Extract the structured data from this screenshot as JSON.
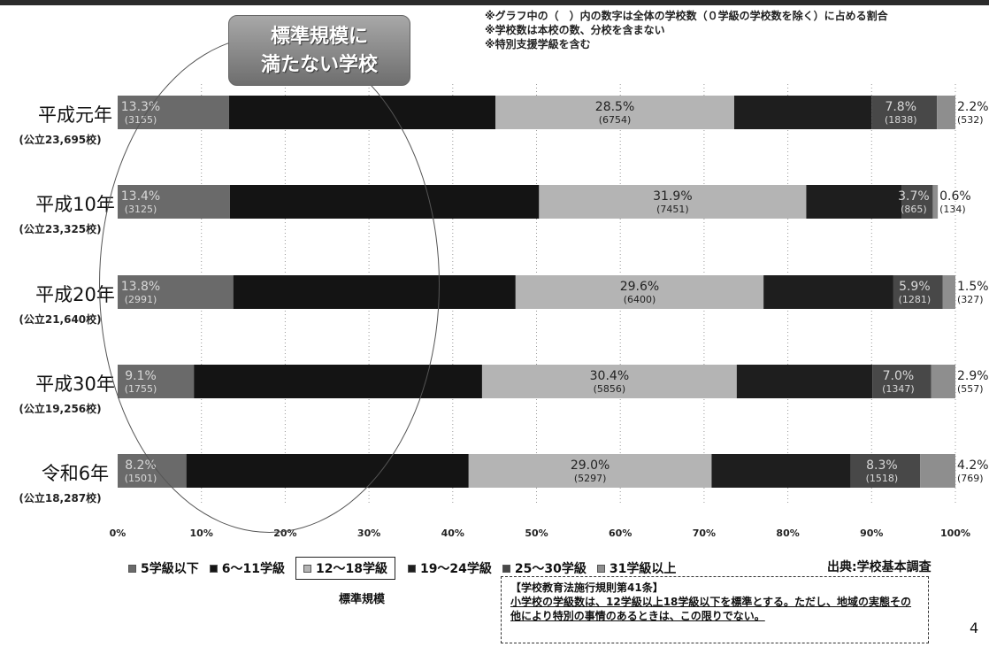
{
  "notes": [
    "※グラフ中の（　）内の数字は全体の学校数（０学級の学校数を除く）に占める割合",
    "※学校数は本校の数、分校を含まない",
    "※特別支援学級を含む"
  ],
  "callout": {
    "line1": "標準規模に",
    "line2": "満たない学校"
  },
  "legend": {
    "items": [
      "5学級以下",
      "6〜11学級",
      "12〜18学級",
      "19〜24学級",
      "25〜30学級",
      "31学級以上"
    ],
    "standard_label": "標準規模",
    "source": "出典:学校基本調査"
  },
  "law": {
    "title": "【学校教育法施行規則第41条】",
    "text": "小学校の学級数は、12学級以上18学級以下を標準とする。ただし、地域の実態その他により特別の事情のあるときは、この限りでない。"
  },
  "page_number": "4",
  "chart_data": {
    "type": "bar",
    "orientation": "horizontal-stacked-100",
    "categories": [
      {
        "label": "平成元年",
        "sub": "(公立23,695校)"
      },
      {
        "label": "平成10年",
        "sub": "(公立23,325校)"
      },
      {
        "label": "平成20年",
        "sub": "(公立21,640校)"
      },
      {
        "label": "平成30年",
        "sub": "(公立19,256校)"
      },
      {
        "label": "令和6年",
        "sub": "(公立18,287校)"
      }
    ],
    "series": [
      {
        "name": "5学級以下",
        "color": "#6a6a6a",
        "values": [
          13.3,
          13.4,
          13.8,
          9.1,
          8.2
        ],
        "labels": [
          "13.3%",
          "13.4%",
          "13.8%",
          "9.1%",
          "8.2%"
        ],
        "counts": [
          "(3155)",
          "(3125)",
          "(2991)",
          "(1755)",
          "(1501)"
        ]
      },
      {
        "name": "6〜11学級",
        "color": "#141414",
        "values": [
          31.8,
          36.9,
          33.7,
          34.4,
          33.7
        ],
        "labels": [],
        "counts": []
      },
      {
        "name": "12〜18学級",
        "color": "#b4b4b4",
        "values": [
          28.5,
          31.9,
          29.6,
          30.4,
          29.0
        ],
        "labels": [
          "28.5%",
          "31.9%",
          "29.6%",
          "30.4%",
          "29.0%"
        ],
        "counts": [
          "(6754)",
          "(7451)",
          "(6400)",
          "(5856)",
          "(5297)"
        ]
      },
      {
        "name": "19〜24学級",
        "color": "#1e1e1e",
        "values": [
          16.4,
          11.4,
          15.5,
          16.2,
          16.6
        ],
        "labels": [],
        "counts": []
      },
      {
        "name": "25〜30学級",
        "color": "#484848",
        "values": [
          7.8,
          3.7,
          5.9,
          7.0,
          8.3
        ],
        "labels": [
          "7.8%",
          "3.7%",
          "5.9%",
          "7.0%",
          "8.3%"
        ],
        "counts": [
          "(1838)",
          "(865)",
          "(1281)",
          "(1347)",
          "(1518)"
        ]
      },
      {
        "name": "31学級以上",
        "color": "#8e8e8e",
        "values": [
          2.2,
          0.6,
          1.5,
          2.9,
          4.2
        ],
        "labels": [
          "2.2%",
          "0.6%",
          "1.5%",
          "2.9%",
          "4.2%"
        ],
        "counts": [
          "(532)",
          "(134)",
          "(327)",
          "(557)",
          "(769)"
        ]
      }
    ],
    "xlim": [
      0,
      100
    ],
    "xticks": [
      "0%",
      "10%",
      "20%",
      "30%",
      "40%",
      "50%",
      "60%",
      "70%",
      "80%",
      "90%",
      "100%"
    ],
    "grid": true
  }
}
